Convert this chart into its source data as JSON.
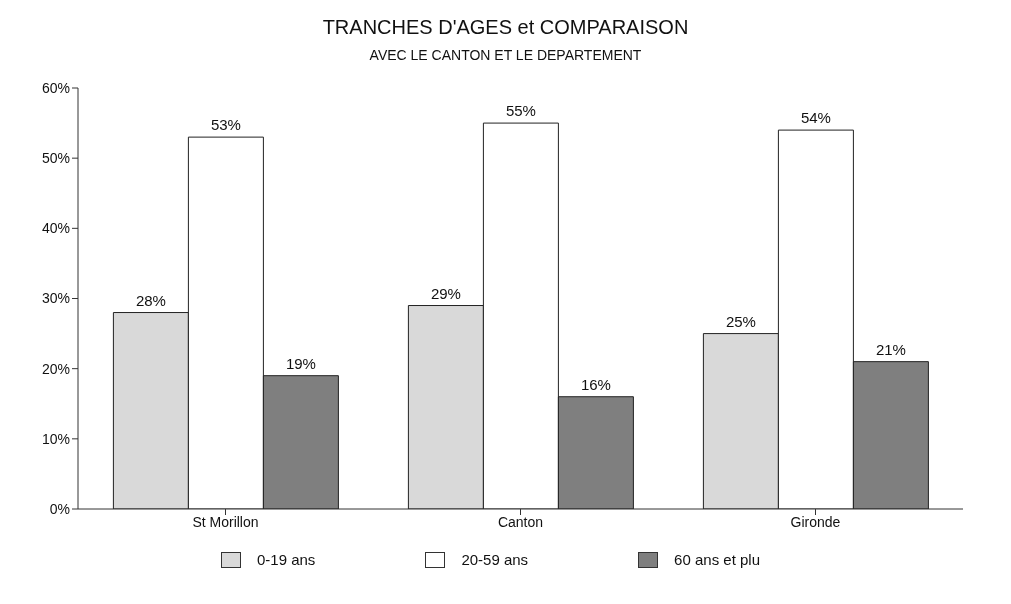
{
  "chart_data": {
    "type": "bar",
    "title": "TRANCHES D'AGES et COMPARAISON",
    "subtitle": "AVEC LE CANTON ET LE DEPARTEMENT",
    "categories": [
      "St Morillon",
      "Canton",
      "Gironde"
    ],
    "series": [
      {
        "name": "0-19 ans",
        "color": "#d9d9d9",
        "values": [
          28,
          29,
          25
        ],
        "value_labels": [
          "28%",
          "29%",
          "25%"
        ]
      },
      {
        "name": "20-59 ans",
        "color": "#ffffff",
        "values": [
          53,
          55,
          54
        ],
        "value_labels": [
          "53%",
          "55%",
          "54%"
        ]
      },
      {
        "name": "60 ans et plu",
        "color": "#7f7f7f",
        "values": [
          19,
          16,
          21
        ],
        "value_labels": [
          "19%",
          "16%",
          "21%"
        ]
      }
    ],
    "ylim": [
      0,
      60
    ],
    "yticks": [
      {
        "value": 0,
        "label": "0%"
      },
      {
        "value": 10,
        "label": "10%"
      },
      {
        "value": 20,
        "label": "20%"
      },
      {
        "value": 30,
        "label": "30%"
      },
      {
        "value": 40,
        "label": "40%"
      },
      {
        "value": 50,
        "label": "50%"
      },
      {
        "value": 60,
        "label": "60%"
      }
    ],
    "grid": false,
    "legend": "bottom"
  }
}
